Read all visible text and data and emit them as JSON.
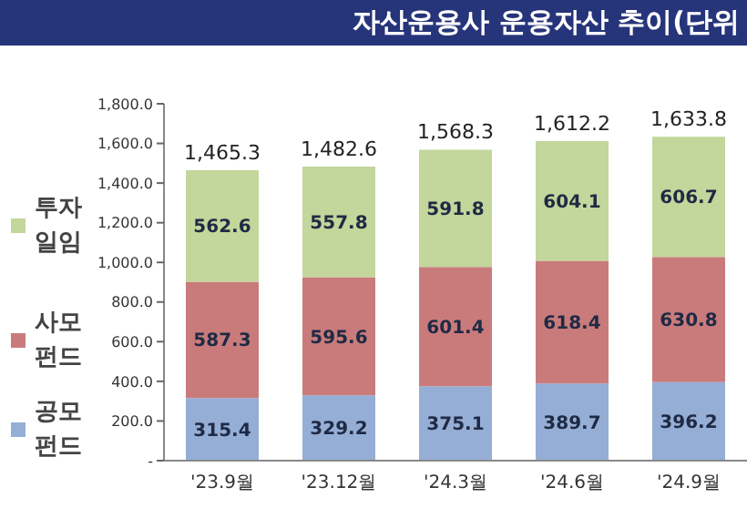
{
  "chart_data": {
    "type": "bar",
    "title": "자산운용사 운용자산 추이(단위",
    "stacked": true,
    "legend": "left",
    "data_labels": true,
    "categories": [
      "'23.9월",
      "'23.12월",
      "'24.3월",
      "'24.6월",
      "'24.9월"
    ],
    "series": [
      {
        "name": "공모 펀드",
        "color": "#95aed6",
        "values": [
          315.4,
          329.2,
          375.1,
          389.7,
          396.2
        ]
      },
      {
        "name": "사모 펀드",
        "color": "#c97b7b",
        "values": [
          587.3,
          595.6,
          601.4,
          618.4,
          630.8
        ]
      },
      {
        "name": "투자 일임",
        "color": "#c3d69b",
        "values": [
          562.6,
          557.8,
          591.8,
          604.1,
          606.7
        ]
      }
    ],
    "totals": [
      "1,465.3",
      "1,482.6",
      "1,568.3",
      "1,612.2",
      "1,633.8"
    ],
    "ylim": [
      0,
      1800
    ],
    "yticks": [
      {
        "value": 0,
        "label": "-"
      },
      {
        "value": 200,
        "label": "200.0"
      },
      {
        "value": 400,
        "label": "400.0"
      },
      {
        "value": 600,
        "label": "600.0"
      },
      {
        "value": 800,
        "label": "800.0"
      },
      {
        "value": 1000,
        "label": "1,000.0"
      },
      {
        "value": 1200,
        "label": "1,200.0"
      },
      {
        "value": 1400,
        "label": "1,400.0"
      },
      {
        "value": 1600,
        "label": "1,600.0"
      },
      {
        "value": 1800,
        "label": "1,800.0"
      }
    ],
    "grid": false
  }
}
